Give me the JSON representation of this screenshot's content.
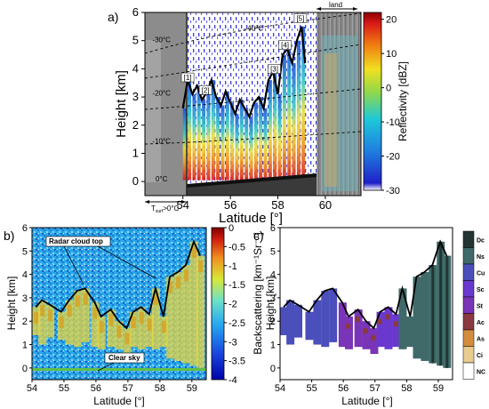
{
  "chart_data": [
    {
      "panel": "a)",
      "type": "heatmap",
      "xlabel": "Latitude [°]",
      "ylabel": "Height [km]",
      "xticks": [
        "54",
        "56",
        "58",
        "60"
      ],
      "yticks": [
        "0",
        "1",
        "2",
        "3",
        "4",
        "5",
        "6"
      ],
      "xlim": [
        52.4,
        61.5
      ],
      "ylim": [
        -0.5,
        6
      ],
      "colorbar": {
        "label": "Reflectivity [dBZ]",
        "ticks": [
          "20",
          "10",
          "0",
          "-10",
          "-20",
          "-30"
        ],
        "range": [
          -30,
          22
        ]
      },
      "isotherms": [
        {
          "label": "-40°C",
          "x": 57.0,
          "y": 5.35
        },
        {
          "label": "-30°C",
          "x": 53.1,
          "y": 4.95
        },
        {
          "label": "-20°C",
          "x": 53.1,
          "y": 3.05
        },
        {
          "label": "-10°C",
          "x": 53.1,
          "y": 1.35
        },
        {
          "label": "0°C",
          "x": 53.1,
          "y": 0.0
        }
      ],
      "cell_labels": [
        {
          "label": "[1]",
          "x": 54.2,
          "y": 3.6
        },
        {
          "label": "[2]",
          "x": 54.95,
          "y": 3.15
        },
        {
          "label": "[3]",
          "x": 57.85,
          "y": 3.9
        },
        {
          "label": "[4]",
          "x": 58.3,
          "y": 4.75
        },
        {
          "label": "[5]",
          "x": 58.95,
          "y": 5.7
        }
      ],
      "land_label": "land",
      "tsurf_label": "T",
      "tsurf_sub": "surf",
      "tsurf_rest": ">0°C",
      "cloud_top": {
        "x": [
          54.0,
          54.2,
          54.4,
          54.6,
          54.8,
          55.0,
          55.2,
          55.4,
          55.6,
          55.8,
          56.0,
          56.2,
          56.4,
          56.6,
          56.8,
          57.0,
          57.2,
          57.4,
          57.6,
          57.8,
          58.0,
          58.2,
          58.4,
          58.6,
          58.8,
          59.0,
          59.15
        ],
        "y": [
          2.6,
          3.6,
          3.1,
          3.4,
          2.9,
          3.15,
          3.6,
          3.0,
          2.7,
          3.2,
          2.8,
          2.4,
          2.9,
          2.6,
          2.3,
          2.8,
          3.0,
          2.6,
          3.6,
          3.9,
          3.1,
          4.5,
          4.7,
          4.2,
          5.0,
          5.5,
          4.2
        ]
      }
    },
    {
      "panel": "b)",
      "type": "heatmap",
      "xlabel": "Latitude [°]",
      "ylabel": "Height [km]",
      "xticks": [
        "54",
        "55",
        "56",
        "57",
        "58",
        "59"
      ],
      "yticks": [
        "0",
        "1",
        "2",
        "3",
        "4",
        "5",
        "6"
      ],
      "xlim": [
        54,
        59.45
      ],
      "ylim": [
        -0.5,
        6
      ],
      "colorbar": {
        "label": "Backscattering [km⁻¹Sr⁻¹]",
        "ticks": [
          "0",
          "-0.5",
          "-1",
          "-1.5",
          "-2",
          "-2.5",
          "-3",
          "-3.5",
          "-4"
        ],
        "range": [
          -4,
          0
        ]
      },
      "annotations": [
        "Radar cloud top",
        "Clear sky"
      ]
    },
    {
      "panel": "c)",
      "type": "heatmap",
      "xlabel": "Latitude [°]",
      "ylabel": "Height [km]",
      "xticks": [
        "54",
        "55",
        "56",
        "57",
        "58",
        "59"
      ],
      "yticks": [
        "0",
        "1",
        "2",
        "3",
        "4",
        "5",
        "6"
      ],
      "xlim": [
        54,
        59.45
      ],
      "ylim": [
        -0.5,
        6
      ],
      "legend": [
        {
          "label": "Dc",
          "color": "#223533"
        },
        {
          "label": "Ns",
          "color": "#3f6a69"
        },
        {
          "label": "Cu",
          "color": "#4b4fbb"
        },
        {
          "label": "Sc",
          "color": "#6b38cf"
        },
        {
          "label": "St",
          "color": "#7a34b7"
        },
        {
          "label": "Ac",
          "color": "#8a3a40"
        },
        {
          "label": "As",
          "color": "#d38d3c"
        },
        {
          "label": "Ci",
          "color": "#eacb8f"
        },
        {
          "label": "NC",
          "color": "#ffffff"
        }
      ]
    }
  ]
}
